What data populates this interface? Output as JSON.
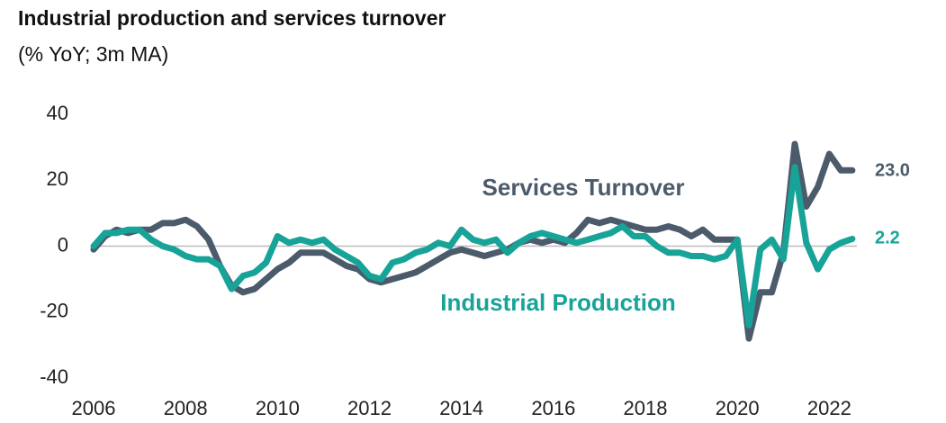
{
  "chart_data": {
    "type": "line",
    "title": "Industrial production and services turnover",
    "subtitle": "(% YoY; 3m MA)",
    "x": [
      2006,
      2006.25,
      2006.5,
      2006.75,
      2007,
      2007.25,
      2007.5,
      2007.75,
      2008,
      2008.25,
      2008.5,
      2008.75,
      2009,
      2009.25,
      2009.5,
      2009.75,
      2010,
      2010.25,
      2010.5,
      2010.75,
      2011,
      2011.25,
      2011.5,
      2011.75,
      2012,
      2012.25,
      2012.5,
      2012.75,
      2013,
      2013.25,
      2013.5,
      2013.75,
      2014,
      2014.25,
      2014.5,
      2014.75,
      2015,
      2015.25,
      2015.5,
      2015.75,
      2016,
      2016.25,
      2016.5,
      2016.75,
      2017,
      2017.25,
      2017.5,
      2017.75,
      2018,
      2018.25,
      2018.5,
      2018.75,
      2019,
      2019.25,
      2019.5,
      2019.75,
      2020,
      2020.25,
      2020.5,
      2020.75,
      2021,
      2021.25,
      2021.5,
      2021.75,
      2022,
      2022.25,
      2022.5
    ],
    "series": [
      {
        "name": "Services Turnover",
        "color": "#4b5b6b",
        "values": [
          -1,
          3,
          5,
          4,
          5,
          5,
          7,
          7,
          8,
          6,
          2,
          -6,
          -12,
          -14,
          -13,
          -10,
          -7,
          -5,
          -2,
          -2,
          -2,
          -4,
          -6,
          -7,
          -10,
          -11,
          -10,
          -9,
          -8,
          -6,
          -4,
          -2,
          -1,
          -2,
          -3,
          -2,
          -1,
          1,
          2,
          1,
          2,
          1,
          4,
          8,
          7,
          8,
          7,
          6,
          5,
          5,
          6,
          5,
          3,
          5,
          2,
          2,
          2,
          -28,
          -14,
          -14,
          -2,
          31,
          12,
          18,
          28,
          23,
          23
        ],
        "value_labels": [
          null,
          null,
          null,
          null,
          null,
          null,
          null,
          null,
          null,
          null,
          null,
          null,
          null,
          null,
          null,
          null,
          null,
          null,
          null,
          null,
          null,
          null,
          null,
          null,
          null,
          null,
          null,
          null,
          null,
          null,
          null,
          null,
          null,
          null,
          null,
          null,
          null,
          null,
          null,
          null,
          null,
          null,
          null,
          null,
          null,
          null,
          null,
          null,
          null,
          null,
          null,
          null,
          null,
          null,
          null,
          null,
          null,
          null,
          null,
          null,
          null,
          null,
          null,
          null,
          null,
          null,
          "23.0"
        ]
      },
      {
        "name": "Industrial Production",
        "color": "#17a398",
        "values": [
          0,
          4,
          4,
          5,
          5,
          2,
          0,
          -1,
          -3,
          -4,
          -4,
          -6,
          -13,
          -9,
          -8,
          -5,
          3,
          1,
          2,
          1,
          2,
          -1,
          -3,
          -5,
          -9,
          -10,
          -5,
          -4,
          -2,
          -1,
          1,
          0,
          5,
          2,
          1,
          2,
          -2,
          1,
          3,
          4,
          3,
          2,
          1,
          2,
          3,
          4,
          6,
          3,
          3,
          0,
          -2,
          -2,
          -3,
          -3,
          -4,
          -3,
          2,
          -24,
          -1,
          2,
          -4,
          24,
          1,
          -7,
          -1,
          1,
          2.2
        ],
        "value_labels": [
          null,
          null,
          null,
          null,
          null,
          null,
          null,
          null,
          null,
          null,
          null,
          null,
          null,
          null,
          null,
          null,
          null,
          null,
          null,
          null,
          null,
          null,
          null,
          null,
          null,
          null,
          null,
          null,
          null,
          null,
          null,
          null,
          null,
          null,
          null,
          null,
          null,
          null,
          null,
          null,
          null,
          null,
          null,
          null,
          null,
          null,
          null,
          null,
          null,
          null,
          null,
          null,
          null,
          null,
          null,
          null,
          null,
          null,
          null,
          null,
          null,
          null,
          null,
          null,
          null,
          null,
          "2.2"
        ]
      }
    ],
    "xlim": [
      2006,
      2022.6
    ],
    "xticks": [
      2006,
      2008,
      2010,
      2012,
      2014,
      2016,
      2018,
      2020,
      2022
    ],
    "ylim": [
      -40,
      40
    ],
    "yticks": [
      40,
      20,
      0,
      -20,
      -40
    ],
    "zero_line": true
  }
}
